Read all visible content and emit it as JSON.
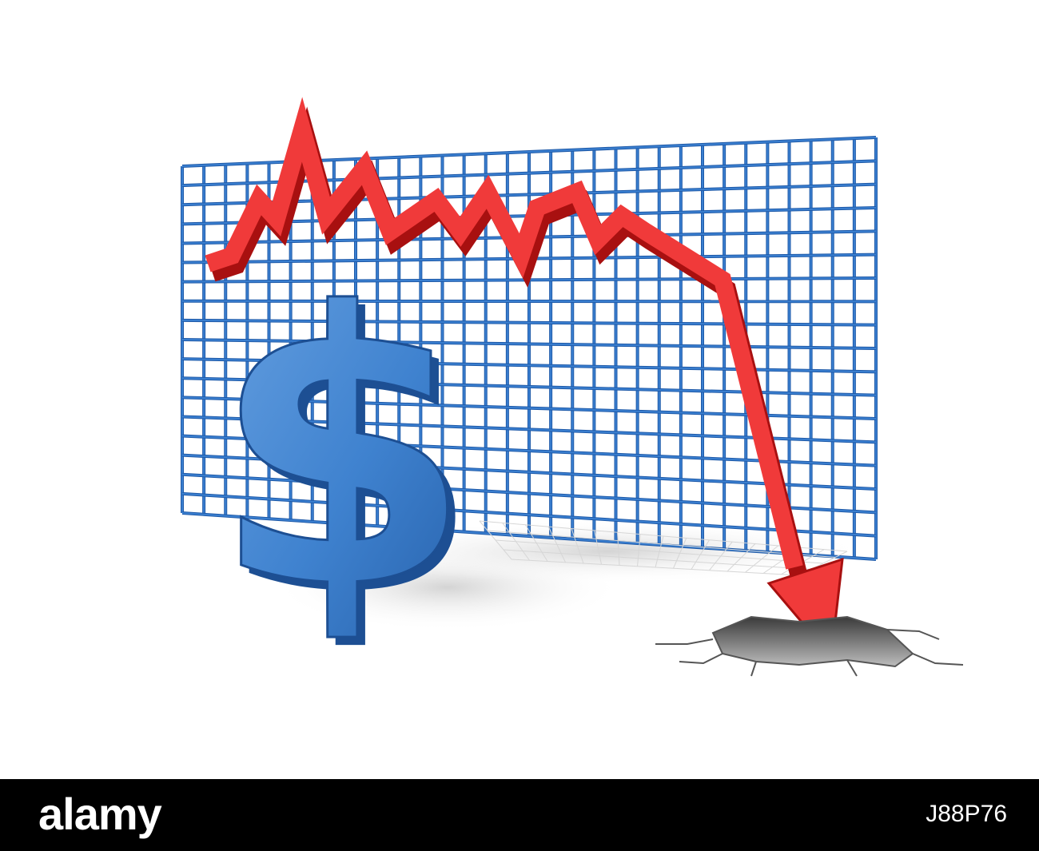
{
  "scene": {
    "symbol": "$",
    "icon_names": [
      "dollar-sign-icon",
      "grid-backdrop",
      "falling-arrow-icon",
      "ground-crack"
    ],
    "colors": {
      "grid": "#3a7fd0",
      "grid_dark": "#1f5aa8",
      "arrow": "#f03a3a",
      "arrow_dark": "#a81010",
      "dollar": "#3f82cf",
      "dollar_dark": "#1d4f93",
      "background": "#ffffff",
      "footer": "#000000"
    }
  },
  "footer": {
    "brand": "alamy",
    "image_id": "J88P76"
  }
}
